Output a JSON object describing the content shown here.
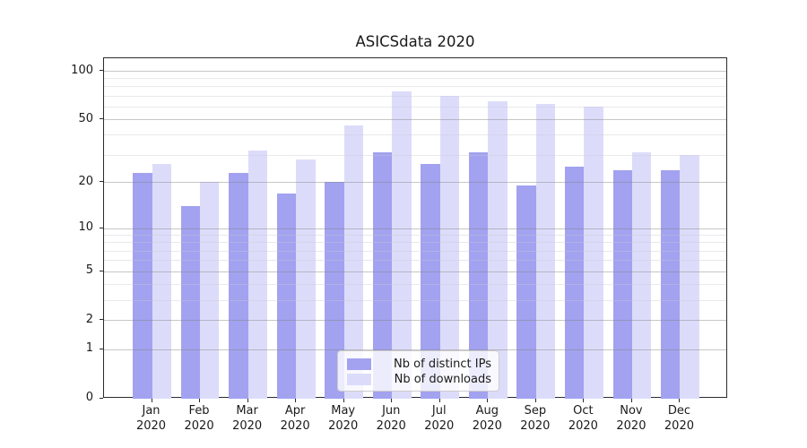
{
  "title": "ASICSdata 2020",
  "chart_data": {
    "type": "bar",
    "title": "ASICSdata 2020",
    "categories": [
      "Jan 2020",
      "Feb 2020",
      "Mar 2020",
      "Apr 2020",
      "May 2020",
      "Jun 2020",
      "Jul 2020",
      "Aug 2020",
      "Sep 2020",
      "Oct 2020",
      "Nov 2020",
      "Dec 2020"
    ],
    "category_months": [
      "Jan",
      "Feb",
      "Mar",
      "Apr",
      "May",
      "Jun",
      "Jul",
      "Aug",
      "Sep",
      "Oct",
      "Nov",
      "Dec"
    ],
    "category_year": "2020",
    "series": [
      {
        "name": "Nb of distinct IPs",
        "color": "#a2a2f0",
        "values": [
          23,
          14,
          23,
          17,
          20,
          31,
          26,
          31,
          19,
          25,
          24,
          24
        ]
      },
      {
        "name": "Nb of downloads",
        "color": "#dcdcfa",
        "values": [
          26,
          20,
          32,
          28,
          46,
          75,
          70,
          65,
          62,
          60,
          31,
          30
        ]
      }
    ],
    "xlabel": "",
    "ylabel": "",
    "yscale": "log1p",
    "ylim": [
      0,
      120
    ],
    "yticks": [
      0,
      1,
      2,
      5,
      10,
      20,
      50,
      100
    ],
    "minor_yticks": [
      3,
      4,
      6,
      7,
      8,
      9,
      30,
      40,
      60,
      70,
      80,
      90
    ],
    "grid": true,
    "legend_position": "lower center"
  },
  "legend": {
    "items": [
      {
        "label": "Nb of distinct IPs",
        "color": "#a2a2f0"
      },
      {
        "label": "Nb of downloads",
        "color": "#dcdcfa"
      }
    ]
  }
}
